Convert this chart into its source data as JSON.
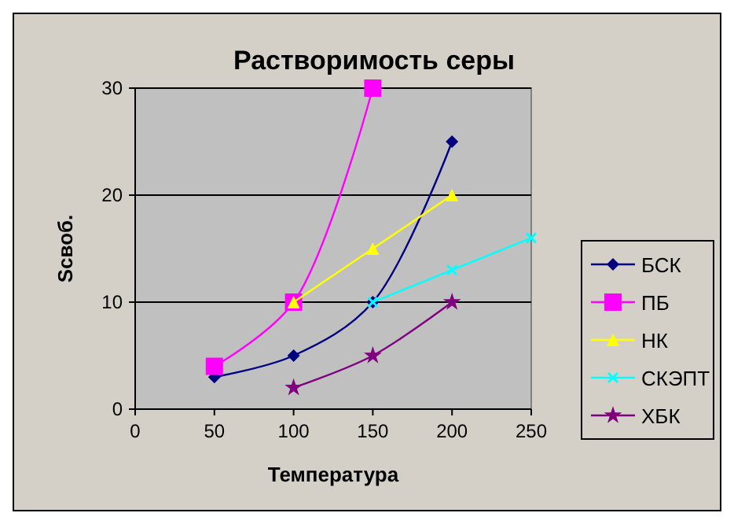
{
  "chart_data": {
    "type": "line",
    "title": "Растворимость серы",
    "xlabel": "Температура",
    "ylabel": "Sсвоб.",
    "xlim": [
      0,
      250
    ],
    "xticks": [
      0,
      50,
      100,
      150,
      200,
      250
    ],
    "ylim": [
      0,
      30
    ],
    "yticks": [
      0,
      10,
      20,
      30
    ],
    "grid": "y",
    "legend": "right",
    "line_style": "solid",
    "series": [
      {
        "name": "БСК",
        "color": "#000080",
        "marker": "diamond",
        "x": [
          50,
          100,
          150,
          200
        ],
        "values": [
          3,
          5,
          10,
          25
        ]
      },
      {
        "name": "ПБ",
        "color": "#ff00ff",
        "marker": "square",
        "x": [
          50,
          100,
          150
        ],
        "values": [
          4,
          10,
          30
        ]
      },
      {
        "name": "НК",
        "color": "#ffff00",
        "marker": "triangle",
        "x": [
          100,
          150,
          200
        ],
        "values": [
          10,
          15,
          20
        ]
      },
      {
        "name": "СКЭПТ",
        "color": "#00ffff",
        "marker": "cross",
        "x": [
          150,
          200,
          250
        ],
        "values": [
          10,
          13,
          16
        ]
      },
      {
        "name": "ХБК",
        "color": "#800080",
        "marker": "star",
        "x": [
          100,
          150,
          200
        ],
        "values": [
          2,
          5,
          10
        ]
      }
    ]
  }
}
